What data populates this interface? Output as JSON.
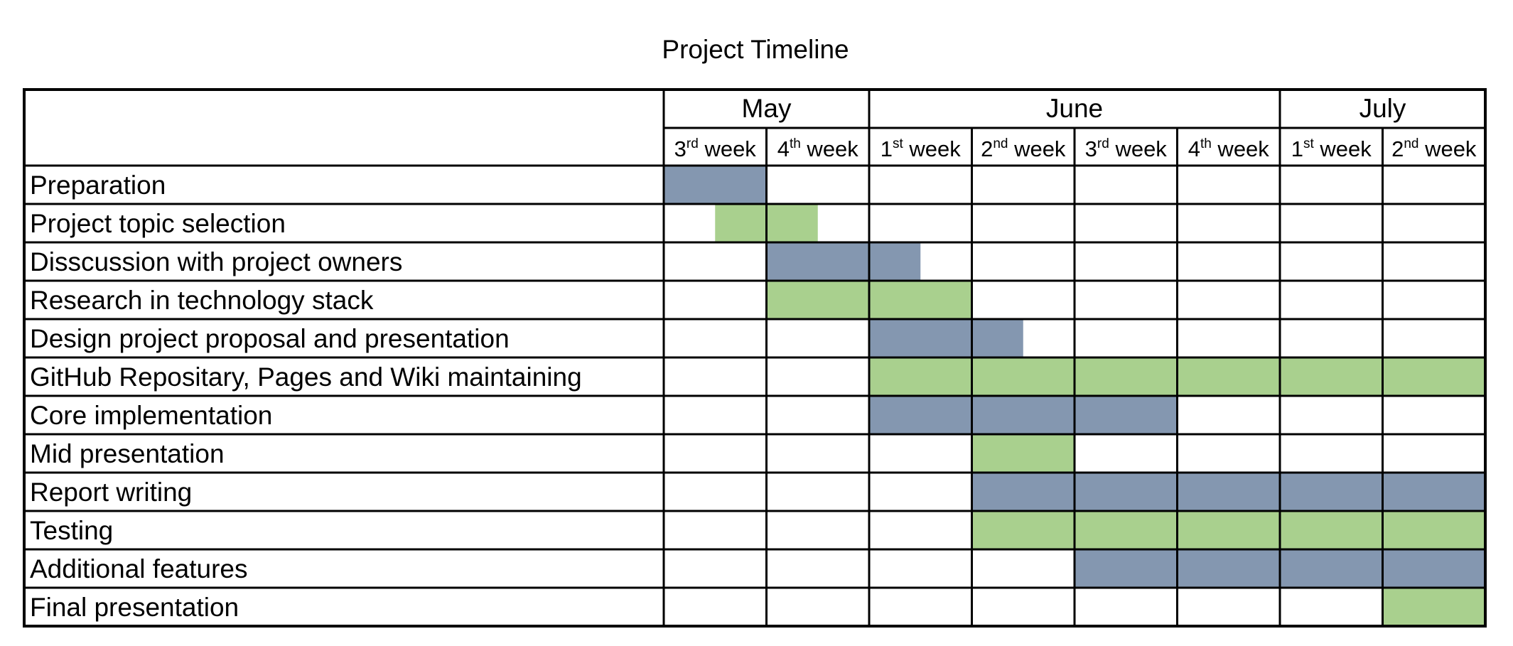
{
  "chart_data": {
    "type": "gantt",
    "title": "Project Timeline",
    "months": [
      {
        "label": "May",
        "weeks": 2
      },
      {
        "label": "June",
        "weeks": 4
      },
      {
        "label": "July",
        "weeks": 2
      }
    ],
    "weeks": [
      {
        "num": "3",
        "suffix": "rd",
        "word": " week"
      },
      {
        "num": "4",
        "suffix": "th",
        "word": " week"
      },
      {
        "num": "1",
        "suffix": "st",
        "word": " week"
      },
      {
        "num": "2",
        "suffix": "nd",
        "word": " week"
      },
      {
        "num": "3",
        "suffix": "rd",
        "word": " week"
      },
      {
        "num": "4",
        "suffix": "th",
        "word": " week"
      },
      {
        "num": "1",
        "suffix": "st",
        "word": " week"
      },
      {
        "num": "2",
        "suffix": "nd",
        "word": " week"
      }
    ],
    "tasks": [
      {
        "name": "Preparation",
        "start": 0,
        "end": 1,
        "color": "blue"
      },
      {
        "name": "Project topic selection",
        "start": 0.5,
        "end": 1.5,
        "color": "green"
      },
      {
        "name": "Disscussion with project owners",
        "start": 1,
        "end": 2.5,
        "color": "blue"
      },
      {
        "name": "Research in technology stack",
        "start": 1,
        "end": 3,
        "color": "green"
      },
      {
        "name": "Design project proposal and presentation",
        "start": 2,
        "end": 3.5,
        "color": "blue"
      },
      {
        "name": "GitHub Repositary, Pages and Wiki maintaining",
        "start": 2,
        "end": 8,
        "color": "green"
      },
      {
        "name": "Core implementation",
        "start": 2,
        "end": 5,
        "color": "blue"
      },
      {
        "name": "Mid presentation",
        "start": 3,
        "end": 4,
        "color": "green"
      },
      {
        "name": "Report writing",
        "start": 3,
        "end": 8,
        "color": "blue"
      },
      {
        "name": "Testing",
        "start": 3,
        "end": 8,
        "color": "green"
      },
      {
        "name": "Additional features",
        "start": 4,
        "end": 8,
        "color": "blue"
      },
      {
        "name": "Final presentation",
        "start": 7,
        "end": 8,
        "color": "green"
      }
    ],
    "colors": {
      "blue": "#8497B0",
      "green": "#A9D08E"
    }
  }
}
